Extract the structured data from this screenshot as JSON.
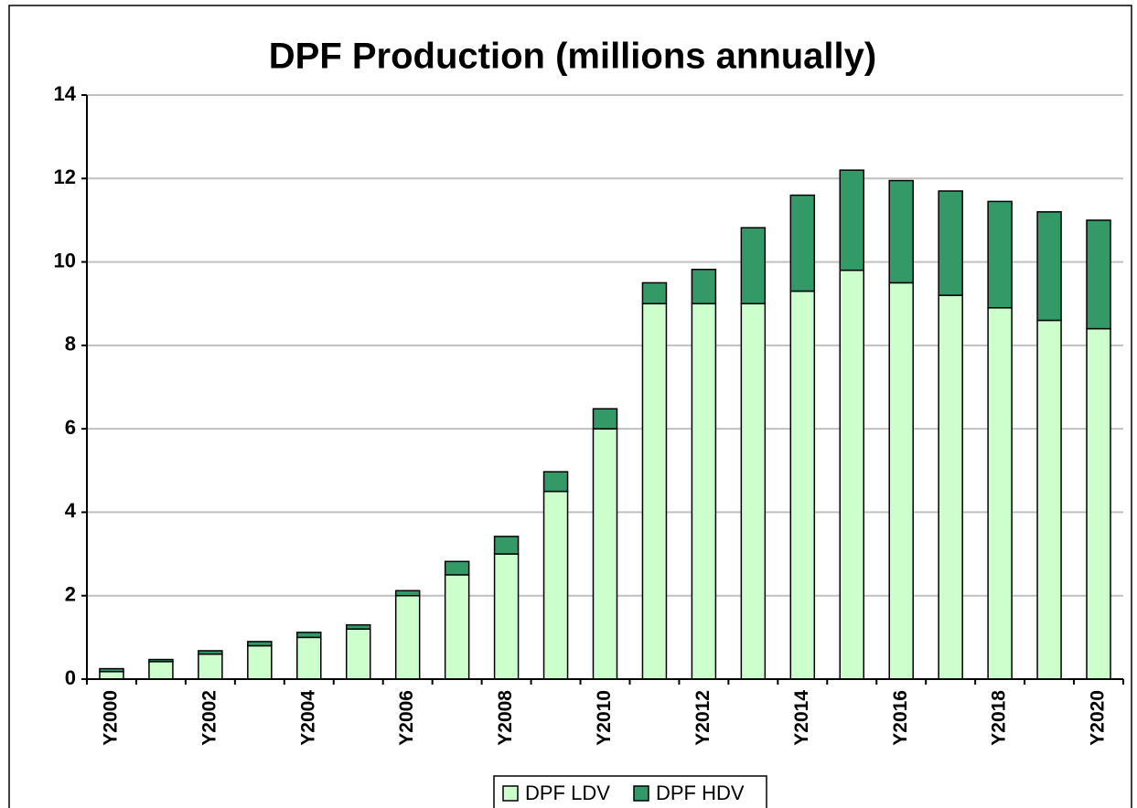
{
  "chart_data": {
    "type": "stacked_bar",
    "title": "DPF Production (millions annually)",
    "categories": [
      "Y2000",
      null,
      "Y2002",
      null,
      "Y2004",
      null,
      "Y2006",
      null,
      "Y2008",
      null,
      "Y2010",
      null,
      "Y2012",
      null,
      "Y2014",
      null,
      "Y2016",
      null,
      "Y2018",
      null,
      "Y2020"
    ],
    "series": [
      {
        "name": "DPF LDV",
        "color": "#ccffcc",
        "values": [
          0.18,
          0.42,
          0.6,
          0.8,
          1.0,
          1.2,
          2.0,
          2.5,
          3.0,
          4.5,
          6.0,
          9.0,
          9.0,
          9.0,
          9.3,
          9.8,
          9.5,
          9.2,
          8.9,
          8.6,
          8.4
        ]
      },
      {
        "name": "DPF HDV",
        "color": "#339966",
        "values": [
          0.07,
          0.05,
          0.08,
          0.1,
          0.12,
          0.1,
          0.12,
          0.32,
          0.42,
          0.47,
          0.48,
          0.5,
          0.82,
          1.82,
          2.3,
          2.4,
          2.45,
          2.5,
          2.55,
          2.6,
          2.6
        ]
      }
    ],
    "ylim": [
      0,
      14
    ],
    "yticks": [
      0,
      2,
      4,
      6,
      8,
      10,
      12,
      14
    ],
    "grid": true,
    "legend": "bottom"
  }
}
